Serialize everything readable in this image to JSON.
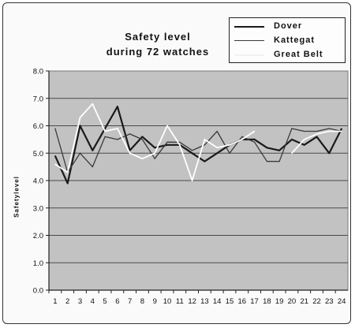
{
  "chart_data": {
    "type": "line",
    "title": [
      "Safety level",
      "during 72 watches"
    ],
    "ylabel": "Safetylevel",
    "xlabel": "",
    "categories": [
      "1",
      "2",
      "3",
      "4",
      "5",
      "6",
      "7",
      "8",
      "9",
      "10",
      "11",
      "12",
      "13",
      "14",
      "15",
      "16",
      "17",
      "18",
      "19",
      "20",
      "21",
      "22",
      "23",
      "24"
    ],
    "ylim": [
      0,
      8
    ],
    "yticks": [
      "0.0",
      "1.0",
      "2.0",
      "3.0",
      "4.0",
      "5.0",
      "6.0",
      "7.0",
      "8.0"
    ],
    "grid": true,
    "legend_position": "top-right",
    "series": [
      {
        "name": "Dover",
        "color": "#1a1a1a",
        "width": 2.2,
        "values": [
          4.9,
          3.9,
          6.0,
          5.1,
          5.9,
          6.7,
          5.1,
          5.6,
          5.2,
          5.3,
          5.3,
          5.0,
          4.7,
          5.0,
          5.3,
          5.5,
          5.5,
          5.2,
          5.1,
          5.5,
          5.3,
          5.6,
          5.0,
          5.9
        ]
      },
      {
        "name": "Kattegat",
        "color": "#3a3a3a",
        "width": 1.3,
        "values": [
          5.9,
          4.3,
          5.0,
          4.5,
          5.6,
          5.5,
          5.7,
          5.5,
          4.8,
          5.4,
          5.4,
          5.1,
          5.3,
          5.8,
          5.0,
          5.6,
          5.4,
          4.7,
          4.7,
          5.9,
          5.8,
          5.8,
          5.9,
          5.8
        ]
      },
      {
        "name": "Great Belt",
        "color": "#ffffff",
        "width": 1.8,
        "values": [
          4.6,
          4.3,
          6.3,
          6.8,
          5.8,
          5.9,
          5.0,
          4.8,
          5.0,
          6.0,
          5.3,
          4.0,
          5.5,
          5.2,
          5.3,
          5.5,
          5.8,
          null,
          null,
          5.0,
          5.5,
          5.7,
          5.8,
          5.8
        ]
      }
    ]
  }
}
